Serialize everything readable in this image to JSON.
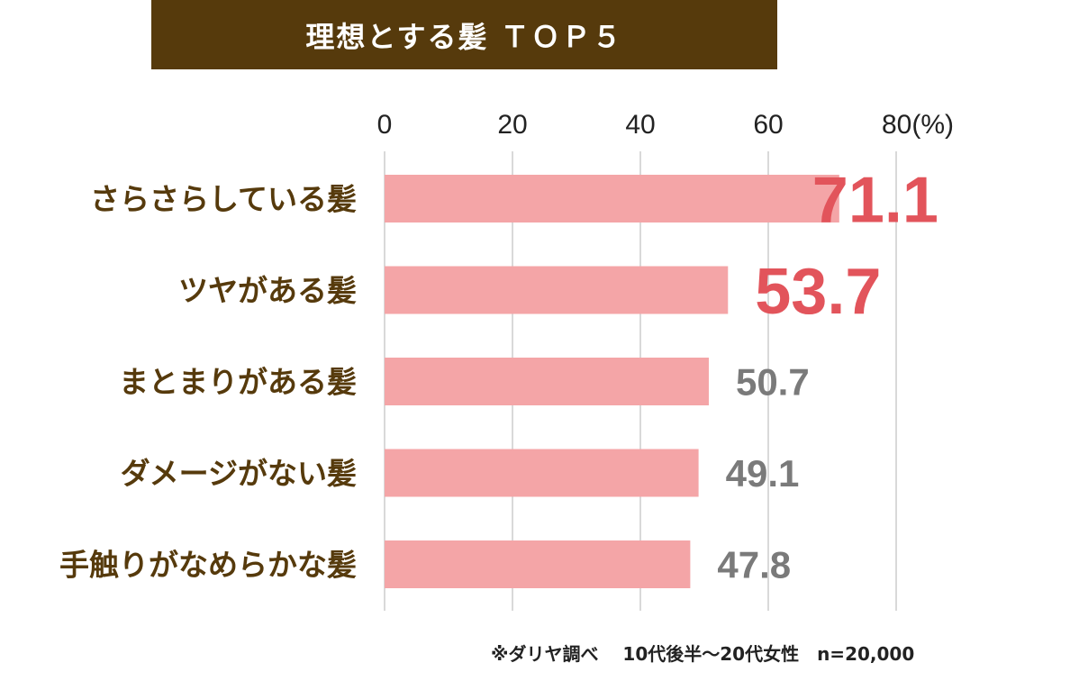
{
  "chart_data": {
    "type": "bar",
    "orientation": "horizontal",
    "title": "理想とする髪 ＴＯＰ５",
    "unit_label": "80(%)",
    "xlim": [
      0,
      80
    ],
    "ticks": [
      0,
      20,
      40,
      60,
      80
    ],
    "tick_labels": [
      "0",
      "20",
      "40",
      "60",
      "80(%)"
    ],
    "categories": [
      "さらさらしている髪",
      "ツヤがある髪",
      "まとまりがある髪",
      "ダメージがない髪",
      "手触りがなめらかな髪"
    ],
    "values": [
      71.1,
      53.7,
      50.7,
      49.1,
      47.8
    ],
    "value_labels": [
      "71.1",
      "53.7",
      "50.7",
      "49.1",
      "47.8"
    ],
    "highlight": [
      true,
      true,
      false,
      false,
      false
    ],
    "grid": true
  },
  "colors": {
    "title_bg": "#563a0c",
    "bar": "#f4a5a7",
    "highlight_label": "#e2545b",
    "normal_label": "#7a7a7a",
    "category_text": "#563a0c",
    "grid": "#d9d9d9"
  },
  "footnote": "※ダリヤ調べ　 10代後半～20代女性　n=20,000"
}
